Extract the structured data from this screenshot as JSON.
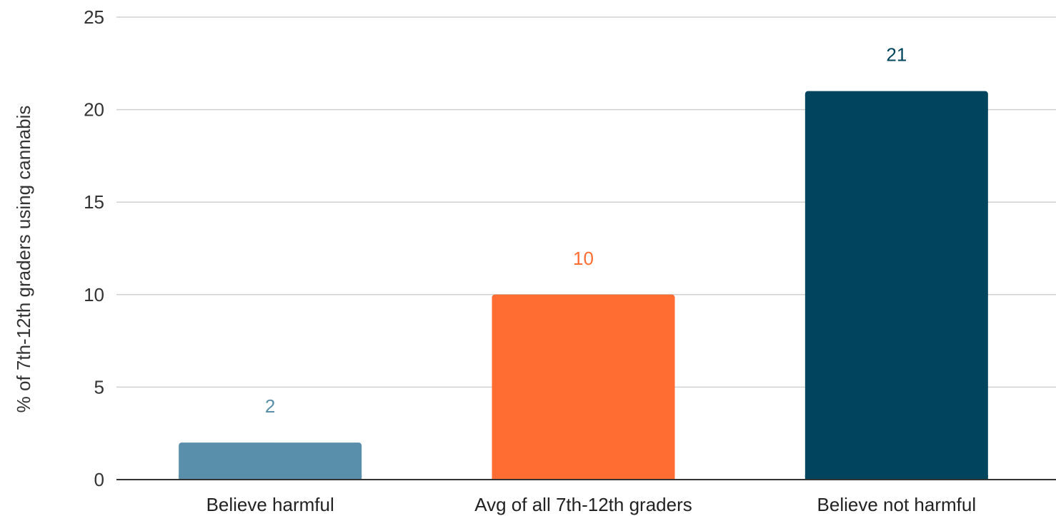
{
  "chart_data": {
    "type": "bar",
    "title": "",
    "xlabel": "",
    "ylabel": "% of 7th-12th graders using cannabis",
    "ylim": [
      0,
      25
    ],
    "yticks": [
      0,
      5,
      10,
      15,
      20,
      25
    ],
    "grid": true,
    "legend": "none",
    "categories": [
      "Believe harmful",
      "Avg of all 7th-12th graders",
      "Believe not harmful"
    ],
    "values": [
      2,
      10,
      21
    ],
    "data_labels": [
      "2",
      "10",
      "21"
    ],
    "bar_colors": [
      "#5a8fab",
      "#ff6d33",
      "#00445e"
    ]
  }
}
